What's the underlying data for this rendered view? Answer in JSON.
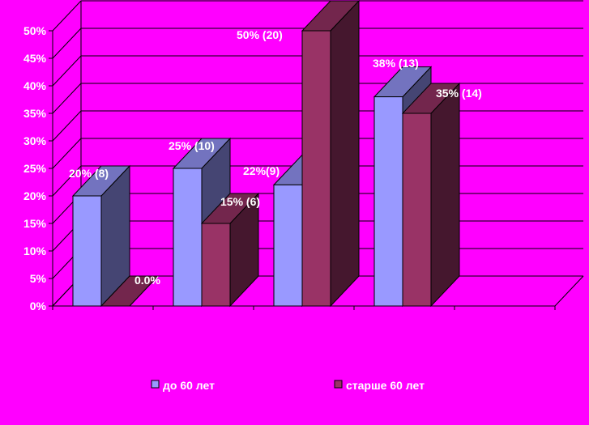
{
  "chart_data": {
    "type": "bar",
    "categories": [
      "",
      "",
      "",
      ""
    ],
    "ylim": [
      0,
      50
    ],
    "yticks": [
      "0%",
      "5%",
      "10%",
      "15%",
      "20%",
      "25%",
      "30%",
      "35%",
      "40%",
      "45%",
      "50%"
    ],
    "grid": true,
    "legend_position": "bottom",
    "series": [
      {
        "name": "до 60 лет",
        "color": "#9999FF",
        "values": [
          20,
          25,
          22,
          38
        ],
        "labels": [
          "20% (8)",
          "25% (10)",
          "22%(9)",
          "38% (13)"
        ]
      },
      {
        "name": "старше 60 лет",
        "color": "#993366",
        "values": [
          0,
          15,
          50,
          35
        ],
        "labels": [
          "0.0%",
          "15% (6)",
          "50% (20)",
          "35% (14)"
        ]
      }
    ]
  }
}
